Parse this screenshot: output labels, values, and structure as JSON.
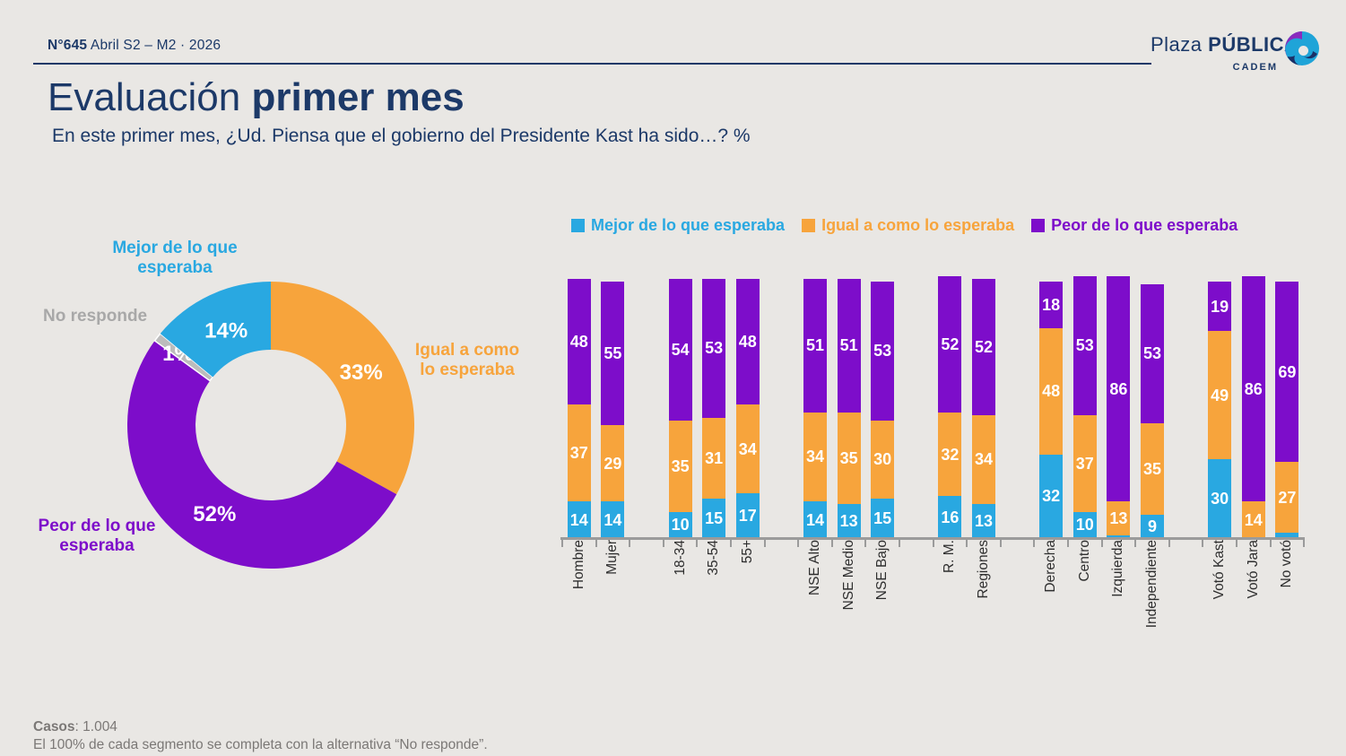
{
  "header": {
    "issue": "N°645",
    "period": " Abril S2 – M2 · 2026",
    "logo": {
      "plaza": "Plaza ",
      "publica": "PÚBLICA",
      "cadem": "CADEM"
    }
  },
  "title": {
    "light": "Evaluación ",
    "bold": "primer mes"
  },
  "subtitle": "En este primer mes, ¿Ud. Piensa que el gobierno del Presidente Kast ha sido…? %",
  "footer": {
    "cases_label": "Casos",
    "cases_value": ": 1.004",
    "note": "El 100% de cada segmento se completa con la alternativa “No responde”."
  },
  "colors": {
    "better": "#29a8e1",
    "same": "#f7a43c",
    "worse": "#7d0dca",
    "no_answer": "#bcbcbc",
    "navy": "#1c3968",
    "axis": "#9b9b9b",
    "background": "#e9e7e4"
  },
  "chart_data": [
    {
      "type": "pie",
      "donut": true,
      "start": "top, clockwise",
      "unit": "%",
      "slices": [
        {
          "label": "Igual a como lo esperaba",
          "value": 33,
          "color": "#f7a43c"
        },
        {
          "label": "Peor de lo que esperaba",
          "value": 52,
          "color": "#7d0dca"
        },
        {
          "label": "No responde",
          "value": 1,
          "color": "#bcbcbc"
        },
        {
          "label": "Mejor de lo que esperaba",
          "value": 14,
          "color": "#29a8e1"
        }
      ],
      "callouts": {
        "mejor": "Mejor de lo que\nesperaba",
        "no_responde": "No responde",
        "igual": "Igual a como\nlo esperaba",
        "peor": "Peor de lo que\nesperaba"
      }
    },
    {
      "type": "bar",
      "stacked": true,
      "unit": "%",
      "ylim": [
        0,
        100
      ],
      "legend_position": "top",
      "value_labels": true,
      "categories": [
        "Hombre",
        "Mujer",
        "18-34",
        "35-54",
        "55+",
        "NSE Alto",
        "NSE Medio",
        "NSE Bajo",
        "R. M.",
        "Regiones",
        "Derecha",
        "Centro",
        "Izquierda",
        "Independiente",
        "Votó Kast",
        "Votó Jara",
        "No votó"
      ],
      "group_sizes": [
        2,
        3,
        3,
        2,
        4,
        3
      ],
      "series": [
        {
          "name": "Mejor de lo que esperaba",
          "color": "#29a8e1",
          "values": [
            14,
            14,
            10,
            15,
            17,
            14,
            13,
            15,
            16,
            13,
            32,
            10,
            1,
            9,
            30,
            0,
            2
          ]
        },
        {
          "name": "Igual a como lo esperaba",
          "color": "#f7a43c",
          "values": [
            37,
            29,
            35,
            31,
            34,
            34,
            35,
            30,
            32,
            34,
            48,
            37,
            13,
            35,
            49,
            14,
            27
          ]
        },
        {
          "name": "Peor de lo que esperaba",
          "color": "#7d0dca",
          "values": [
            48,
            55,
            54,
            53,
            48,
            51,
            51,
            53,
            52,
            52,
            18,
            53,
            86,
            53,
            19,
            86,
            69
          ]
        }
      ]
    }
  ]
}
